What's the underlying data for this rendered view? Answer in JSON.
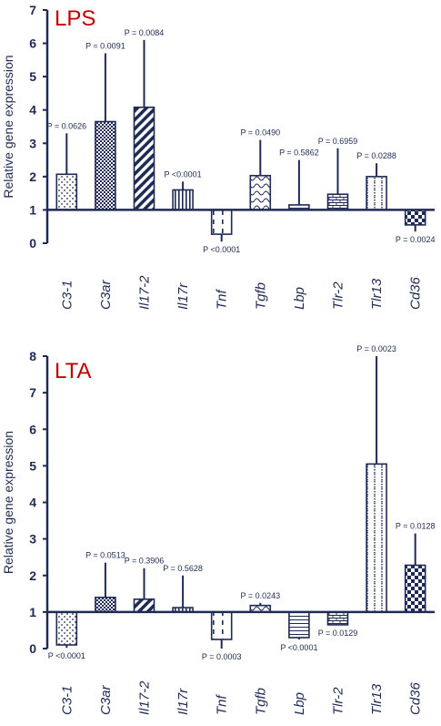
{
  "colors": {
    "axis": "#1f2a55",
    "title": "#c00000",
    "bar_fill": "#ffffff"
  },
  "chart_data": [
    {
      "type": "bar",
      "title": "LPS",
      "ylabel": "Relative gene expression",
      "xlabel": "",
      "ylim": [
        0,
        7
      ],
      "yticks": [
        0,
        1,
        2,
        3,
        4,
        5,
        6,
        7
      ],
      "baseline": 1,
      "categories": [
        "C3-1",
        "C3ar",
        "Il17-2",
        "Il17r",
        "Tnf",
        "Tgfb",
        "Lbp",
        "Tlr-2",
        "Tlr13",
        "Cd36"
      ],
      "values": [
        2.07,
        3.65,
        4.08,
        1.6,
        0.27,
        2.03,
        1.15,
        1.47,
        2.0,
        0.55
      ],
      "error_upper": [
        3.3,
        5.7,
        6.1,
        1.85,
        0.27,
        3.1,
        2.5,
        2.85,
        2.4,
        0.55
      ],
      "error_lower": [
        2.07,
        3.65,
        4.08,
        1.6,
        0.05,
        2.03,
        1.15,
        1.47,
        2.0,
        0.35
      ],
      "patterns": [
        "dots",
        "checker",
        "diagonal",
        "vlines",
        "dashes",
        "waves",
        "hlines",
        "bricks",
        "dotlines",
        "bigchecker"
      ],
      "p_labels": [
        "P = 0.0626",
        "P = 0.0091",
        "P = 0.0084",
        "P <0.0001",
        "P <0.0001",
        "P = 0.0490",
        "P = 0.5862",
        "P = 0.6959",
        "P = 0.0288",
        "P = 0.0024"
      ],
      "p_positions": [
        "above",
        "above",
        "above",
        "above",
        "below",
        "above",
        "above",
        "above",
        "above",
        "below"
      ]
    },
    {
      "type": "bar",
      "title": "LTA",
      "ylabel": "Relative gene expression",
      "xlabel": "",
      "ylim": [
        0,
        8
      ],
      "yticks": [
        0,
        1,
        2,
        3,
        4,
        5,
        6,
        7,
        8
      ],
      "baseline": 1,
      "categories": [
        "C3-1",
        "C3ar",
        "Il17-2",
        "Il17r",
        "Tnf",
        "Tgfb",
        "Lbp",
        "Tlr-2",
        "Tlr13",
        "Cd36"
      ],
      "values": [
        0.1,
        1.4,
        1.35,
        1.12,
        0.25,
        1.18,
        0.3,
        0.65,
        5.05,
        2.28
      ],
      "error_upper": [
        0.1,
        2.35,
        2.2,
        2.0,
        0.25,
        1.25,
        0.3,
        0.65,
        8.0,
        3.15
      ],
      "error_lower": [
        0.02,
        1.4,
        1.35,
        1.12,
        0.0,
        1.18,
        0.25,
        0.65,
        5.05,
        2.28
      ],
      "patterns": [
        "dots",
        "checker",
        "diagonal",
        "vlines",
        "dashes",
        "waves",
        "hlines",
        "bricks",
        "dotlines",
        "bigchecker"
      ],
      "p_labels": [
        "P <0.0001",
        "P = 0.0513",
        "P = 0.3906",
        "P = 0.5628",
        "P = 0.0003",
        "P = 0.0243",
        "P <0.0001",
        "P = 0.0129",
        "P = 0.0023",
        "P = 0.0128"
      ],
      "p_positions": [
        "below",
        "above",
        "above",
        "above",
        "below",
        "above",
        "below",
        "below",
        "above",
        "above"
      ]
    }
  ]
}
